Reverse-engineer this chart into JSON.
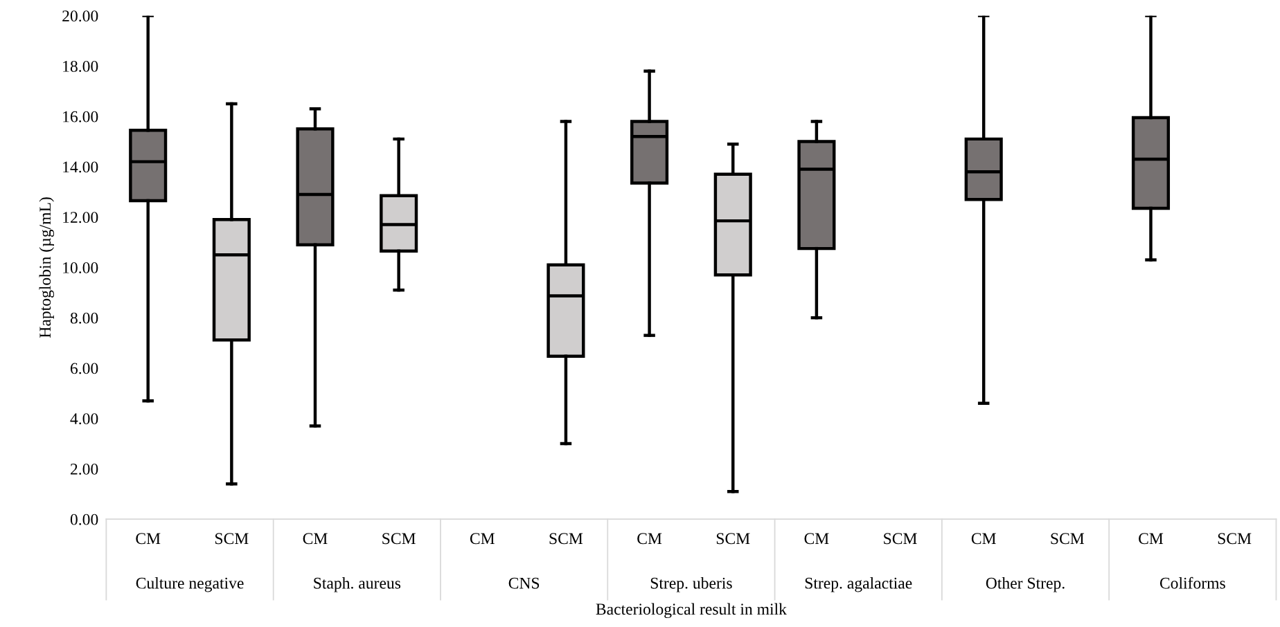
{
  "chart_data": {
    "type": "box",
    "xlabel": "Bacteriological result in milk",
    "ylabel": "Haptoglobin (µg/mL)",
    "categories": [
      "CM",
      "SCM",
      "CM",
      "SCM",
      "CM",
      "SCM",
      "CM",
      "SCM",
      "CM",
      "SCM",
      "CM",
      "SCM",
      "CM",
      "SCM"
    ],
    "annotations": [
      "Culture negative",
      "Staph. aureus",
      "CNS",
      "Strep. uberis",
      "Strep. agalactiae",
      "Other Strep.",
      "Coliforms"
    ],
    "ylim": [
      0,
      20
    ],
    "yticks": [
      {
        "value": 0,
        "label": "0.00"
      },
      {
        "value": 2,
        "label": "2.00"
      },
      {
        "value": 4,
        "label": "4.00"
      },
      {
        "value": 6,
        "label": "6.00"
      },
      {
        "value": 8,
        "label": "8.00"
      },
      {
        "value": 10,
        "label": "10.00"
      },
      {
        "value": 12,
        "label": "12.00"
      },
      {
        "value": 14,
        "label": "14.00"
      },
      {
        "value": 16,
        "label": "16.00"
      },
      {
        "value": 18,
        "label": "18.00"
      },
      {
        "value": 20,
        "label": "20.00"
      }
    ],
    "grid": false,
    "legend": false,
    "series": [
      {
        "color": "#767171",
        "boxes": [
          {
            "low": 4.7,
            "q1": 12.65,
            "median": 14.2,
            "q3": 15.45,
            "high": 20.0
          },
          null,
          {
            "low": 3.7,
            "q1": 10.9,
            "median": 12.9,
            "q3": 15.5,
            "high": 16.3
          },
          null,
          null,
          null,
          {
            "low": 7.3,
            "q1": 13.35,
            "median": 15.2,
            "q3": 15.8,
            "high": 17.8
          },
          null,
          {
            "low": 8.0,
            "q1": 10.75,
            "median": 13.9,
            "q3": 15.0,
            "high": 15.8
          },
          null,
          {
            "low": 4.6,
            "q1": 12.7,
            "median": 13.8,
            "q3": 15.1,
            "high": 20.0
          },
          null,
          {
            "low": 10.3,
            "q1": 12.35,
            "median": 14.3,
            "q3": 15.95,
            "high": 20.0
          },
          null
        ]
      },
      {
        "color": "#d0cece",
        "boxes": [
          null,
          {
            "low": 1.4,
            "q1": 7.12,
            "median": 10.5,
            "q3": 11.9,
            "high": 16.5
          },
          null,
          {
            "low": 9.1,
            "q1": 10.65,
            "median": 11.7,
            "q3": 12.85,
            "high": 15.1
          },
          null,
          {
            "low": 3.0,
            "q1": 6.47,
            "median": 8.87,
            "q3": 10.1,
            "high": 15.8
          },
          null,
          {
            "low": 1.1,
            "q1": 9.7,
            "median": 11.85,
            "q3": 13.7,
            "high": 14.9
          },
          null,
          null,
          null,
          null,
          null,
          null
        ]
      }
    ]
  }
}
